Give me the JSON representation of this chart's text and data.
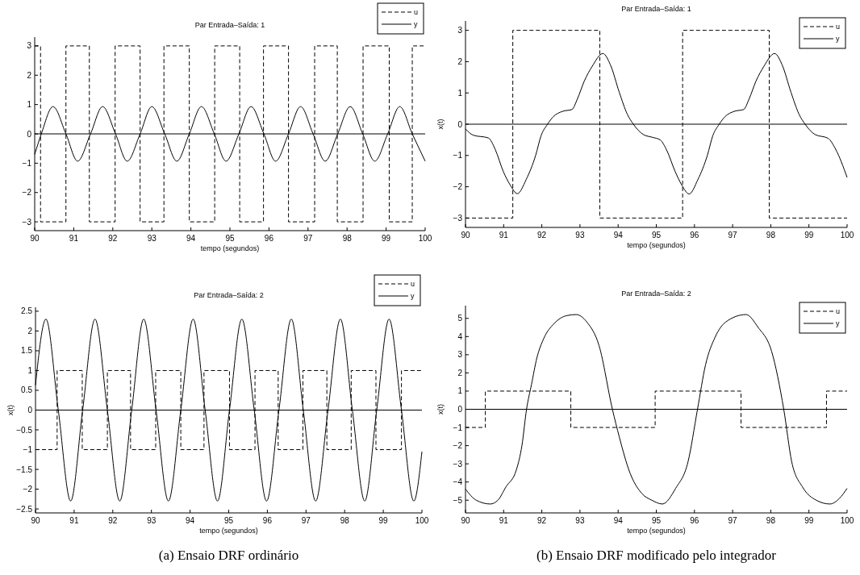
{
  "chart_data": [
    {
      "type": "line",
      "title": "Par Entrada–Saída: 1",
      "xlabel": "tempo (segundos)",
      "xlim": [
        90,
        100
      ],
      "xticks": [
        90,
        91,
        92,
        93,
        94,
        95,
        96,
        97,
        98,
        99,
        100
      ],
      "ylim": [
        -3.3,
        3.3
      ],
      "yticks": [
        -3,
        -2,
        -1,
        0,
        1,
        2,
        3
      ],
      "legend": "top right",
      "ref_lines": [
        {
          "axis": "y",
          "value": 0
        }
      ],
      "series": [
        {
          "name": "u",
          "type": "step",
          "color": "#000000",
          "line_style": "dashed",
          "x": [
            90,
            90.15,
            90.8,
            91.4,
            92.06,
            92.7,
            93.31,
            93.96,
            94.61,
            95.25,
            95.86,
            96.5,
            97.17,
            97.75,
            98.41,
            99.08,
            99.67,
            100
          ],
          "values": [
            3,
            -3,
            3,
            -3,
            3,
            -3,
            3,
            -3,
            3,
            -3,
            3,
            -3,
            3,
            -3,
            3,
            -3,
            3,
            3
          ]
        },
        {
          "name": "y",
          "color": "#000000",
          "line_style": "solid",
          "x": [
            90,
            90.17,
            90.47,
            90.8,
            91.1,
            91.43,
            91.74,
            92.07,
            92.37,
            92.7,
            93.0,
            93.33,
            93.64,
            93.96,
            94.27,
            94.6,
            94.9,
            95.23,
            95.54,
            95.87,
            96.17,
            96.5,
            96.81,
            97.13,
            97.44,
            97.76,
            98.08,
            98.4,
            98.71,
            99.04,
            99.35,
            99.67,
            100
          ],
          "values": [
            -0.7,
            0,
            0.93,
            0,
            -0.93,
            0,
            0.93,
            0,
            -0.93,
            0,
            0.93,
            0,
            -0.93,
            0,
            0.93,
            0,
            -0.93,
            0,
            0.93,
            0,
            -0.93,
            0,
            0.93,
            0,
            -0.93,
            0,
            0.93,
            0,
            -0.93,
            0,
            0.93,
            0,
            -0.93
          ]
        }
      ]
    },
    {
      "type": "line",
      "title": "Par Entrada–Saída: 1",
      "xlabel": "tempo (segundos)",
      "ylabel": "x(t)",
      "xlim": [
        90,
        100
      ],
      "xticks": [
        90,
        91,
        92,
        93,
        94,
        95,
        96,
        97,
        98,
        99,
        100
      ],
      "ylim": [
        -3.3,
        3.3
      ],
      "yticks": [
        -3,
        -2,
        -1,
        0,
        1,
        2,
        3
      ],
      "legend": "top right",
      "ref_lines": [
        {
          "axis": "y",
          "value": 0
        }
      ],
      "series": [
        {
          "name": "u",
          "type": "step",
          "color": "#000000",
          "line_style": "dashed",
          "x": [
            90,
            91.24,
            93.52,
            95.69,
            97.96,
            100
          ],
          "values": [
            -3,
            3,
            -3,
            3,
            -3,
            -3
          ]
        },
        {
          "name": "y",
          "color": "#000000",
          "line_style": "solid",
          "x": [
            90,
            90.2,
            90.6,
            90.78,
            90.99,
            91.17,
            91.36,
            91.59,
            91.84,
            91.98,
            92.15,
            92.3,
            92.54,
            92.79,
            92.93,
            93.11,
            93.32,
            93.6,
            93.8,
            94.03,
            94.24,
            94.4,
            94.66,
            94.9,
            95.1,
            95.28,
            95.49,
            95.67,
            95.86,
            96.09,
            96.34,
            96.48,
            96.65,
            96.8,
            97.04,
            97.29,
            97.43,
            97.61,
            97.82,
            98.1,
            98.3,
            98.53,
            98.74,
            98.9,
            99.16,
            99.5,
            99.7,
            100
          ],
          "values": [
            -0.15,
            -0.35,
            -0.44,
            -0.81,
            -1.51,
            -1.94,
            -2.22,
            -1.77,
            -0.99,
            -0.37,
            0,
            0.24,
            0.41,
            0.47,
            0.8,
            1.37,
            1.85,
            2.26,
            1.89,
            1.02,
            0.32,
            0,
            -0.33,
            -0.42,
            -0.5,
            -0.85,
            -1.5,
            -1.95,
            -2.23,
            -1.77,
            -0.99,
            -0.37,
            0,
            0.24,
            0.41,
            0.47,
            0.8,
            1.37,
            1.85,
            2.26,
            1.89,
            1.02,
            0.32,
            0,
            -0.33,
            -0.45,
            -0.8,
            -1.7
          ]
        }
      ]
    },
    {
      "type": "line",
      "title": "Par Entrada–Saída: 2",
      "xlabel": "tempo (segundos)",
      "ylabel": "x(t)",
      "xlim": [
        90,
        100
      ],
      "xticks": [
        90,
        91,
        92,
        93,
        94,
        95,
        96,
        97,
        98,
        99,
        100
      ],
      "ylim": [
        -2.6,
        2.6
      ],
      "yticks": [
        -2.5,
        -2,
        -1.5,
        -1,
        -0.5,
        0,
        0.5,
        1,
        1.5,
        2,
        2.5
      ],
      "legend": "top right",
      "ref_lines": [
        {
          "axis": "y",
          "value": 0
        }
      ],
      "annotations": [
        "(a) Ensaio DRF ordinário"
      ],
      "series": [
        {
          "name": "u",
          "type": "step",
          "color": "#000000",
          "line_style": "dashed",
          "x": [
            90,
            90.56,
            91.21,
            91.86,
            92.46,
            93.11,
            93.76,
            94.36,
            95.02,
            95.68,
            96.28,
            96.92,
            97.54,
            98.17,
            98.81,
            99.47,
            100
          ],
          "values": [
            -1,
            1,
            -1,
            1,
            -1,
            1,
            -1,
            1,
            -1,
            1,
            -1,
            1,
            -1,
            1,
            -1,
            1,
            1
          ]
        },
        {
          "name": "y",
          "color": "#000000",
          "line_style": "solid",
          "x": [
            90,
            90.27,
            90.59,
            90.91,
            91.22,
            91.54,
            91.86,
            92.18,
            92.49,
            92.8,
            93.12,
            93.44,
            93.76,
            94.08,
            94.39,
            94.71,
            95.02,
            95.34,
            95.66,
            95.98,
            96.3,
            96.62,
            96.93,
            97.25,
            97.57,
            97.89,
            98.2,
            98.52,
            98.83,
            99.15,
            99.47,
            99.79,
            100
          ],
          "values": [
            0.63,
            2.3,
            0,
            -2.3,
            0,
            2.3,
            0,
            -2.3,
            0,
            2.3,
            0,
            -2.3,
            0,
            2.3,
            0,
            -2.3,
            0,
            2.3,
            0,
            -2.3,
            0,
            2.3,
            0,
            -2.3,
            0,
            2.3,
            0,
            -2.3,
            0,
            2.3,
            0,
            -2.3,
            -1.05
          ]
        }
      ]
    },
    {
      "type": "line",
      "title": "Par Entrada–Saída: 2",
      "xlabel": "tempo (segundos)",
      "ylabel": "x(t)",
      "xlim": [
        90,
        100
      ],
      "xticks": [
        90,
        91,
        92,
        93,
        94,
        95,
        96,
        97,
        98,
        99,
        100
      ],
      "ylim": [
        -5.7,
        5.7
      ],
      "yticks": [
        -5,
        -4,
        -3,
        -2,
        -1,
        0,
        1,
        2,
        3,
        4,
        5
      ],
      "legend": "top right",
      "ref_lines": [
        {
          "axis": "y",
          "value": 0
        }
      ],
      "annotations": [
        "(b) Ensaio DRF modificado pelo integrador"
      ],
      "series": [
        {
          "name": "u",
          "type": "step",
          "color": "#000000",
          "line_style": "dashed",
          "x": [
            90,
            90.52,
            92.76,
            94.97,
            97.22,
            99.46,
            100
          ],
          "values": [
            -1,
            1,
            -1,
            1,
            -1,
            1,
            1
          ]
        },
        {
          "name": "y",
          "color": "#000000",
          "line_style": "solid",
          "x": [
            90,
            90.28,
            90.65,
            90.85,
            91.06,
            91.33,
            91.48,
            91.6,
            91.73,
            91.87,
            92.05,
            92.33,
            92.65,
            92.9,
            93.18,
            93.5,
            93.85,
            94.03,
            94.31,
            94.63,
            94.88,
            95.16,
            95.51,
            95.83,
            96.08,
            96.29,
            96.54,
            96.82,
            97.35,
            97.67,
            98.02,
            98.34,
            98.55,
            98.83,
            99.19,
            99.55,
            99.8,
            100
          ],
          "values": [
            -4.39,
            -5.0,
            -5.21,
            -5.0,
            -4.27,
            -3.35,
            -1.98,
            0,
            1.37,
            2.82,
            3.89,
            4.73,
            5.15,
            5.21,
            4.8,
            3.5,
            0,
            -1.52,
            -3.5,
            -4.65,
            -5.0,
            -5.21,
            -4.34,
            -2.9,
            0,
            2.44,
            3.96,
            4.8,
            5.21,
            4.5,
            3.2,
            0,
            -2.9,
            -4.27,
            -5.0,
            -5.21,
            -4.9,
            -4.35
          ]
        }
      ]
    }
  ]
}
